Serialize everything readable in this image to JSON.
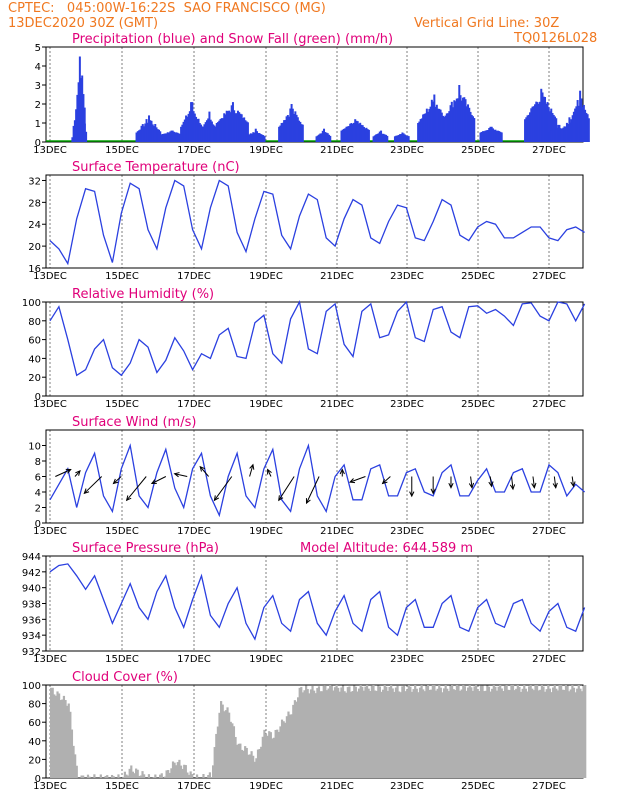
{
  "header": {
    "line1": "CPTEC:   045:00W-16:22S  SAO FRANCISCO (MG)",
    "line2": "13DEC2020 30Z (GMT)",
    "grid": "Vertical Grid Line: 30Z",
    "code": "TQ0126L028"
  },
  "colors": {
    "header": "#f07820",
    "title": "#e0007a",
    "line": "#2b40e0",
    "cloud": "#b0b0b0",
    "snow": "#00a000",
    "arrow": "#000000"
  },
  "chart_data": [
    {
      "type": "bar",
      "title": "Precipitation (blue) and Snow Fall (green) (mm/h)",
      "x_tick_labels": [
        "13DEC",
        "15DEC",
        "17DEC",
        "19DEC",
        "21DEC",
        "23DEC",
        "25DEC",
        "27DEC"
      ],
      "ylim": [
        0,
        5
      ],
      "yticks": [
        0,
        1,
        2,
        3,
        4,
        5
      ],
      "series": [
        {
          "name": "Precipitation",
          "bursts": [
            [
              4.55,
              4.5,
              0.2,
              0.25
            ],
            [
              4.62,
              3.5,
              0.1,
              1.5
            ],
            [
              6.5,
              1.4,
              0.35,
              0.5
            ],
            [
              7.15,
              0.6,
              0.3,
              0.4
            ],
            [
              7.7,
              2.1,
              0.3,
              0.8
            ],
            [
              8.2,
              1.6,
              0.25,
              0.5
            ],
            [
              8.85,
              2.1,
              0.45,
              1.0
            ],
            [
              9.5,
              0.7,
              0.25,
              0.3
            ],
            [
              10.5,
              2.0,
              0.35,
              0.8
            ],
            [
              11.4,
              0.7,
              0.2,
              0.3
            ],
            [
              12.3,
              1.2,
              0.4,
              0.6
            ],
            [
              13.0,
              0.6,
              0.2,
              0.3
            ],
            [
              13.6,
              0.5,
              0.2,
              0.3
            ],
            [
              14.5,
              2.5,
              0.45,
              1.0
            ],
            [
              15.2,
              3.0,
              0.45,
              1.2
            ],
            [
              16.1,
              0.8,
              0.3,
              0.5
            ],
            [
              17.5,
              2.8,
              0.45,
              1.2
            ],
            [
              18.0,
              0.9,
              0.3,
              0.5
            ],
            [
              18.3,
              1.3,
              0.25,
              0.6
            ],
            [
              18.6,
              2.7,
              0.25,
              1.2
            ]
          ]
        },
        {
          "name": "Snow Fall",
          "values": []
        }
      ]
    },
    {
      "type": "line",
      "title": "Surface Temperature (nC)",
      "x_tick_labels": [
        "13DEC",
        "15DEC",
        "17DEC",
        "19DEC",
        "21DEC",
        "23DEC",
        "25DEC",
        "27DEC"
      ],
      "ylim": [
        16,
        33
      ],
      "yticks": [
        16,
        20,
        24,
        28,
        32
      ],
      "x": [
        3.75,
        4.0,
        4.25,
        4.5,
        4.75,
        5.0,
        5.25,
        5.5,
        5.75,
        6.0,
        6.25,
        6.5,
        6.75,
        7.0,
        7.25,
        7.5,
        7.75,
        8.0,
        8.25,
        8.5,
        8.75,
        9.0,
        9.25,
        9.5,
        9.75,
        10.0,
        10.25,
        10.5,
        10.75,
        11.0,
        11.25,
        11.5,
        11.75,
        12.0,
        12.25,
        12.5,
        12.75,
        13.0,
        13.25,
        13.5,
        13.75,
        14.0,
        14.25,
        14.5,
        14.75,
        15.0,
        15.25,
        15.5,
        15.75,
        16.0,
        16.25,
        16.5,
        16.75,
        17.0,
        17.25,
        17.5,
        17.75,
        18.0,
        18.25,
        18.5,
        18.75
      ],
      "y": [
        21.0,
        19.5,
        16.8,
        25.0,
        30.5,
        30.0,
        22.0,
        17.0,
        26.0,
        31.5,
        30.5,
        23.0,
        19.5,
        27.0,
        32.0,
        31.0,
        23.0,
        19.5,
        27.0,
        32.0,
        31.0,
        22.5,
        19.0,
        25.0,
        30.0,
        29.5,
        22.0,
        19.5,
        25.5,
        29.5,
        28.5,
        21.5,
        20.0,
        25.0,
        28.5,
        27.5,
        21.5,
        20.5,
        24.5,
        27.5,
        27.0,
        21.5,
        21.0,
        24.5,
        28.5,
        27.5,
        22.0,
        21.0,
        23.5,
        24.5,
        24.0,
        21.5,
        21.5,
        22.5,
        23.5,
        23.5,
        21.5,
        21.0,
        23.0,
        23.5,
        22.5
      ]
    },
    {
      "type": "line",
      "title": "Relative Humidity (%)",
      "x_tick_labels": [
        "13DEC",
        "15DEC",
        "17DEC",
        "19DEC",
        "21DEC",
        "23DEC",
        "25DEC",
        "27DEC"
      ],
      "ylim": [
        0,
        100
      ],
      "yticks": [
        0,
        20,
        40,
        60,
        80,
        100
      ],
      "x": [
        3.75,
        4.0,
        4.25,
        4.5,
        4.75,
        5.0,
        5.25,
        5.5,
        5.75,
        6.0,
        6.25,
        6.5,
        6.75,
        7.0,
        7.25,
        7.5,
        7.75,
        8.0,
        8.25,
        8.5,
        8.75,
        9.0,
        9.25,
        9.5,
        9.75,
        10.0,
        10.25,
        10.5,
        10.75,
        11.0,
        11.25,
        11.5,
        11.75,
        12.0,
        12.25,
        12.5,
        12.75,
        13.0,
        13.25,
        13.5,
        13.75,
        14.0,
        14.25,
        14.5,
        14.75,
        15.0,
        15.25,
        15.5,
        15.75,
        16.0,
        16.25,
        16.5,
        16.75,
        17.0,
        17.25,
        17.5,
        17.75,
        18.0,
        18.25,
        18.5,
        18.75
      ],
      "y": [
        80,
        95,
        60,
        22,
        28,
        50,
        60,
        30,
        22,
        35,
        60,
        52,
        25,
        38,
        62,
        48,
        28,
        45,
        40,
        65,
        72,
        42,
        40,
        78,
        86,
        45,
        35,
        82,
        100,
        50,
        45,
        90,
        98,
        55,
        42,
        90,
        98,
        62,
        65,
        90,
        100,
        62,
        58,
        92,
        95,
        68,
        62,
        95,
        96,
        88,
        92,
        85,
        75,
        98,
        99,
        85,
        80,
        100,
        98,
        80,
        98
      ]
    },
    {
      "type": "line",
      "title": "Surface Wind (m/s)",
      "x_tick_labels": [
        "13DEC",
        "15DEC",
        "17DEC",
        "19DEC",
        "21DEC",
        "23DEC",
        "25DEC",
        "27DEC"
      ],
      "ylim": [
        0,
        12
      ],
      "yticks": [
        0,
        2,
        4,
        6,
        8,
        10
      ],
      "x": [
        3.75,
        4.0,
        4.25,
        4.5,
        4.75,
        5.0,
        5.25,
        5.5,
        5.75,
        6.0,
        6.25,
        6.5,
        6.75,
        7.0,
        7.25,
        7.5,
        7.75,
        8.0,
        8.25,
        8.5,
        8.75,
        9.0,
        9.25,
        9.5,
        9.75,
        10.0,
        10.25,
        10.5,
        10.75,
        11.0,
        11.25,
        11.5,
        11.75,
        12.0,
        12.25,
        12.5,
        12.75,
        13.0,
        13.25,
        13.5,
        13.75,
        14.0,
        14.25,
        14.5,
        14.75,
        15.0,
        15.25,
        15.5,
        15.75,
        16.0,
        16.25,
        16.5,
        16.75,
        17.0,
        17.25,
        17.5,
        17.75,
        18.0,
        18.25,
        18.5,
        18.75
      ],
      "y": [
        3.0,
        5.0,
        7.0,
        2.0,
        6.5,
        9.0,
        3.5,
        1.5,
        7.0,
        10.0,
        3.5,
        2.0,
        6.5,
        9.5,
        4.5,
        2.0,
        7.0,
        9.0,
        3.5,
        1.0,
        6.0,
        9.0,
        3.5,
        2.0,
        7.0,
        9.5,
        3.0,
        1.5,
        7.0,
        10.0,
        3.5,
        1.5,
        6.0,
        7.5,
        3.0,
        3.0,
        7.0,
        7.5,
        3.5,
        3.5,
        6.5,
        7.0,
        4.0,
        3.5,
        6.5,
        7.5,
        3.5,
        3.5,
        5.5,
        7.0,
        4.0,
        4.0,
        6.5,
        7.0,
        4.0,
        4.0,
        7.5,
        6.5,
        3.5,
        5.0,
        4.0
      ],
      "arrows": {
        "x": [
          3.9,
          4.45,
          5.2,
          5.75,
          6.45,
          7.0,
          7.6,
          8.2,
          8.85,
          9.35,
          9.95,
          10.6,
          11.3,
          11.95,
          12.6,
          13.3,
          13.9,
          14.5,
          15.0,
          15.55,
          16.1,
          16.7,
          17.3,
          17.9,
          18.4
        ],
        "dx": [
          0.55,
          0.18,
          -0.62,
          -0.28,
          -0.7,
          -0.5,
          -0.45,
          -0.3,
          -0.62,
          0.12,
          -0.12,
          -0.55,
          -0.45,
          0,
          -0.55,
          -0.28,
          0,
          0,
          0,
          0.05,
          0.05,
          0.05,
          0.05,
          0.05,
          0.05
        ],
        "dy": [
          0.25,
          0.2,
          -0.6,
          -0.25,
          -0.85,
          -0.25,
          0.1,
          0.35,
          -0.85,
          0.42,
          0.25,
          -0.85,
          -0.95,
          0.25,
          -0.2,
          -0.25,
          -0.7,
          -0.6,
          -0.4,
          -0.4,
          -0.35,
          -0.45,
          -0.4,
          -0.4,
          -0.35
        ]
      }
    },
    {
      "type": "line",
      "title": "Surface Pressure (hPa)",
      "annotation": "Model Altitude: 644.589 m",
      "x_tick_labels": [
        "13DEC",
        "15DEC",
        "17DEC",
        "19DEC",
        "21DEC",
        "23DEC",
        "25DEC",
        "27DEC"
      ],
      "ylim": [
        932,
        944
      ],
      "yticks": [
        932,
        934,
        936,
        938,
        940,
        942,
        944
      ],
      "x": [
        3.75,
        4.0,
        4.25,
        4.5,
        4.75,
        5.0,
        5.25,
        5.5,
        5.75,
        6.0,
        6.25,
        6.5,
        6.75,
        7.0,
        7.25,
        7.5,
        7.75,
        8.0,
        8.25,
        8.5,
        8.75,
        9.0,
        9.25,
        9.5,
        9.75,
        10.0,
        10.25,
        10.5,
        10.75,
        11.0,
        11.25,
        11.5,
        11.75,
        12.0,
        12.25,
        12.5,
        12.75,
        13.0,
        13.25,
        13.5,
        13.75,
        14.0,
        14.25,
        14.5,
        14.75,
        15.0,
        15.25,
        15.5,
        15.75,
        16.0,
        16.25,
        16.5,
        16.75,
        17.0,
        17.25,
        17.5,
        17.75,
        18.0,
        18.25,
        18.5,
        18.75
      ],
      "y": [
        942.0,
        942.8,
        943.0,
        941.5,
        939.8,
        941.5,
        938.5,
        935.5,
        938.0,
        940.5,
        937.5,
        936.0,
        939.5,
        941.5,
        937.5,
        935.0,
        938.5,
        941.5,
        936.5,
        935.0,
        938.0,
        940.0,
        935.5,
        933.5,
        937.5,
        939.0,
        935.5,
        934.5,
        938.5,
        939.5,
        935.5,
        934.0,
        937.0,
        939.0,
        935.5,
        934.5,
        938.5,
        939.5,
        935.0,
        934.0,
        937.5,
        938.5,
        935.0,
        935.0,
        938.0,
        939.0,
        935.0,
        934.5,
        937.5,
        938.5,
        935.5,
        935.0,
        938.0,
        938.5,
        935.5,
        934.5,
        937.0,
        938.0,
        935.0,
        934.5,
        937.5
      ]
    },
    {
      "type": "bar",
      "title": "Cloud Cover (%)",
      "x_tick_labels": [
        "13DEC",
        "15DEC",
        "17DEC",
        "19DEC",
        "21DEC",
        "23DEC",
        "25DEC",
        "27DEC"
      ],
      "ylim": [
        0,
        100
      ],
      "yticks": [
        0,
        20,
        40,
        60,
        80,
        100
      ],
      "x": [
        3.75,
        4.0,
        4.25,
        4.5,
        4.75,
        5.0,
        5.25,
        5.5,
        5.75,
        6.0,
        6.25,
        6.5,
        6.75,
        7.0,
        7.25,
        7.5,
        7.75,
        8.0,
        8.25,
        8.5,
        8.75,
        9.0,
        9.25,
        9.5,
        9.75,
        10.0,
        10.25,
        10.5,
        10.75,
        11.0,
        11.25,
        11.5,
        11.75,
        12.0,
        12.25,
        12.5,
        12.75,
        13.0,
        13.25,
        13.5,
        13.75,
        14.0,
        14.25,
        14.5,
        14.75,
        15.0,
        15.25,
        15.5,
        15.75,
        16.0,
        16.25,
        16.5,
        16.75,
        17.0,
        17.25,
        17.5,
        17.75,
        18.0,
        18.25,
        18.5,
        18.75
      ],
      "values": [
        95,
        88,
        80,
        0,
        0,
        0,
        0,
        0,
        0,
        10,
        5,
        0,
        0,
        5,
        18,
        12,
        0,
        0,
        3,
        80,
        70,
        35,
        30,
        20,
        50,
        45,
        60,
        72,
        96,
        95,
        95,
        98,
        98,
        95,
        96,
        98,
        97,
        96,
        98,
        95,
        97,
        96,
        97,
        98,
        96,
        98,
        97,
        98,
        97,
        96,
        98,
        97,
        98,
        96,
        98,
        97,
        96,
        98,
        97,
        96,
        98
      ]
    }
  ]
}
